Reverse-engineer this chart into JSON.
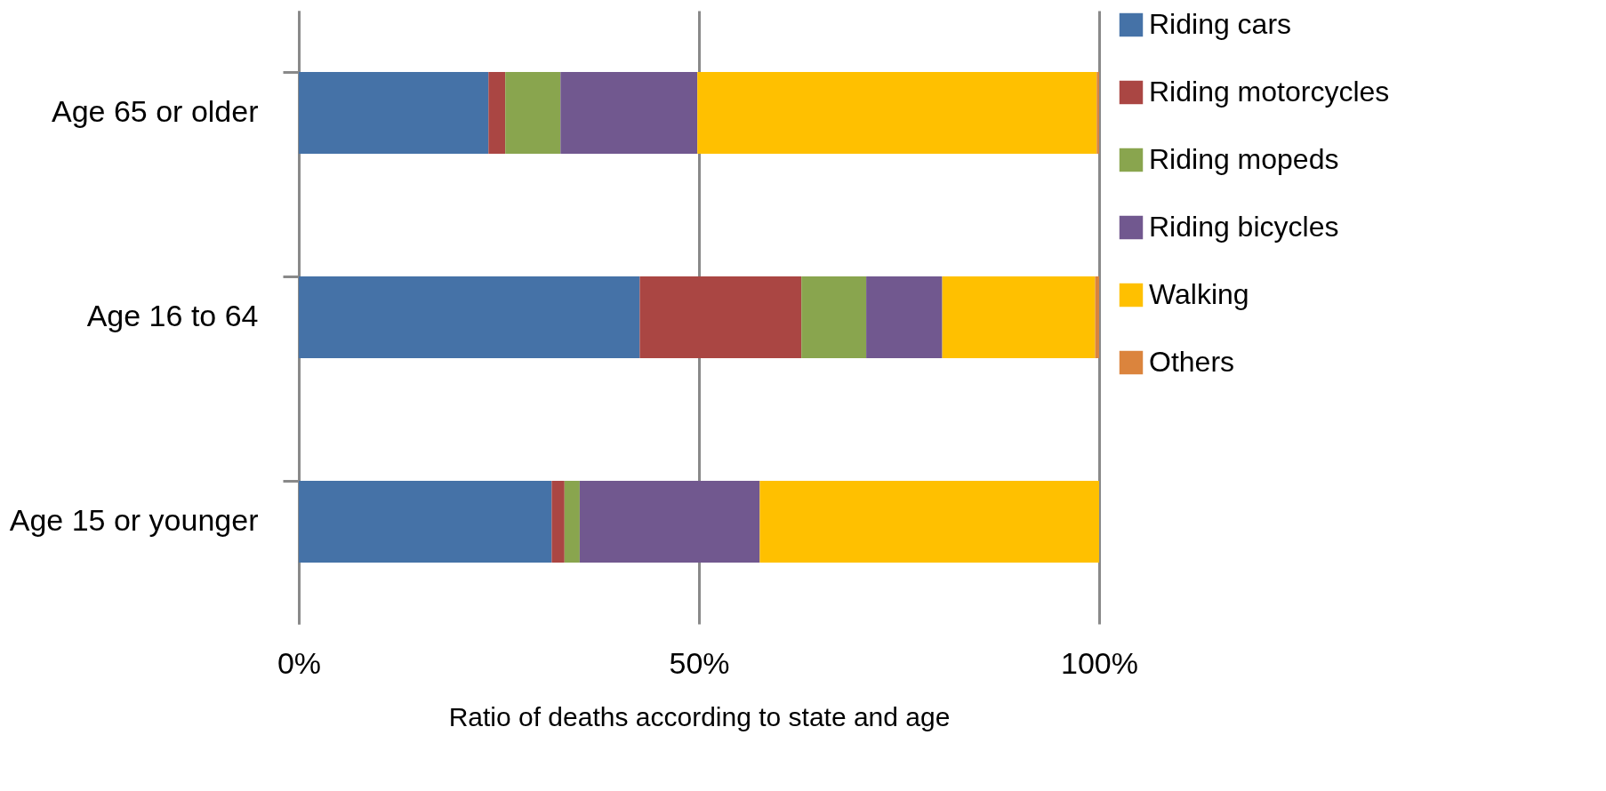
{
  "chart_data": {
    "type": "bar",
    "orientation": "horizontal",
    "stacked": true,
    "xlabel": "Ratio of deaths according to state and age",
    "categories": [
      "Age 65 or older",
      "Age 16 to 64",
      "Age 15 or younger"
    ],
    "series": [
      {
        "name": "Riding cars",
        "color": "#4572a7",
        "values": [
          0.237,
          0.426,
          0.316
        ]
      },
      {
        "name": "Riding motorcycles",
        "color": "#aa4643",
        "values": [
          0.021,
          0.202,
          0.016
        ]
      },
      {
        "name": "Riding mopeds",
        "color": "#89a54e",
        "values": [
          0.069,
          0.081,
          0.019
        ]
      },
      {
        "name": "Riding bicycles",
        "color": "#71588f",
        "values": [
          0.171,
          0.095,
          0.225
        ]
      },
      {
        "name": "Walking",
        "color": "#ffc000",
        "values": [
          0.499,
          0.191,
          0.424
        ]
      },
      {
        "name": "Others",
        "color": "#db843d",
        "values": [
          0.003,
          0.005,
          0
        ]
      }
    ],
    "xlim": [
      0,
      1
    ],
    "xticks": [
      {
        "value": 0,
        "label": "0%"
      },
      {
        "value": 0.5,
        "label": "50%"
      },
      {
        "value": 1,
        "label": "100%"
      }
    ],
    "grid": "x",
    "legend": "right"
  }
}
